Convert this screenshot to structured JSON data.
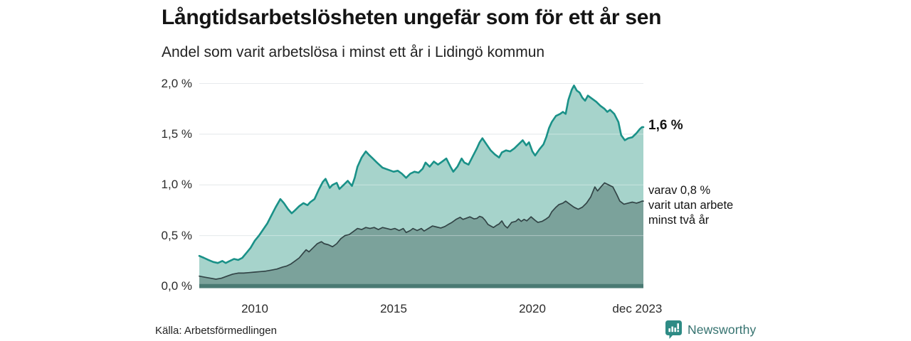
{
  "header": {
    "title": "Långtidsarbetslösheten ungefär som för ett år sen",
    "subtitle": "Andel som varit arbetslösa i minst ett år i Lidingö kommun"
  },
  "annotations": {
    "series1_end_label": "1,6 %",
    "series2_end_lines": [
      "varav 0,8 %",
      "varit utan arbete",
      "minst två år"
    ]
  },
  "footer": {
    "source": "Källa: Arbetsförmedlingen",
    "brand_name": "Newsworthy"
  },
  "colors": {
    "gridline": "#d8dde0",
    "gridline_overlay": "rgba(255,255,255,0.40)",
    "baseline_bar": "#4a7a73",
    "brand_teal": "#2e8b85",
    "text": "#1a1a1a"
  },
  "chart_data": {
    "type": "area",
    "title": "Långtidsarbetslösheten ungefär som för ett år sen",
    "subtitle": "Andel som varit arbetslösa i minst ett år i Lidingö kommun",
    "unit": "%",
    "x_axis": {
      "range": [
        2008,
        2024
      ],
      "ticks": [
        {
          "label": "2010",
          "x": 2010
        },
        {
          "label": "2015",
          "x": 2015
        },
        {
          "label": "2020",
          "x": 2020
        },
        {
          "label": "dec 2023",
          "x": 2023.78
        }
      ]
    },
    "y_axis": {
      "range": [
        0,
        2.0
      ],
      "ticks": [
        {
          "label": "0,0 %",
          "v": 0.0
        },
        {
          "label": "0,5 %",
          "v": 0.5
        },
        {
          "label": "1,0 %",
          "v": 1.0
        },
        {
          "label": "1,5 %",
          "v": 1.5
        },
        {
          "label": "2,0 %",
          "v": 2.0
        }
      ]
    },
    "legend_position": "right-annotations",
    "grid": true,
    "series": [
      {
        "name": "Andel arbetslösa minst ett år",
        "end_value_label": "1,6 %",
        "end_value": 1.6,
        "color": "#1a9188",
        "fill": "#a6d3cb",
        "stroke_width": 2.6,
        "points": [
          [
            2008.0,
            0.3
          ],
          [
            2008.17,
            0.28
          ],
          [
            2008.33,
            0.26
          ],
          [
            2008.5,
            0.24
          ],
          [
            2008.67,
            0.23
          ],
          [
            2008.83,
            0.25
          ],
          [
            2008.95,
            0.23
          ],
          [
            2009.1,
            0.25
          ],
          [
            2009.25,
            0.27
          ],
          [
            2009.4,
            0.26
          ],
          [
            2009.55,
            0.28
          ],
          [
            2009.7,
            0.33
          ],
          [
            2009.85,
            0.38
          ],
          [
            2010.0,
            0.45
          ],
          [
            2010.15,
            0.5
          ],
          [
            2010.3,
            0.56
          ],
          [
            2010.45,
            0.62
          ],
          [
            2010.6,
            0.7
          ],
          [
            2010.75,
            0.78
          ],
          [
            2010.92,
            0.86
          ],
          [
            2011.05,
            0.82
          ],
          [
            2011.2,
            0.76
          ],
          [
            2011.33,
            0.72
          ],
          [
            2011.45,
            0.75
          ],
          [
            2011.6,
            0.79
          ],
          [
            2011.75,
            0.82
          ],
          [
            2011.9,
            0.8
          ],
          [
            2012.0,
            0.83
          ],
          [
            2012.15,
            0.86
          ],
          [
            2012.3,
            0.95
          ],
          [
            2012.45,
            1.03
          ],
          [
            2012.55,
            1.06
          ],
          [
            2012.7,
            0.97
          ],
          [
            2012.8,
            1.0
          ],
          [
            2012.95,
            1.02
          ],
          [
            2013.05,
            0.96
          ],
          [
            2013.2,
            1.0
          ],
          [
            2013.35,
            1.04
          ],
          [
            2013.5,
            0.99
          ],
          [
            2013.6,
            1.07
          ],
          [
            2013.7,
            1.18
          ],
          [
            2013.85,
            1.27
          ],
          [
            2014.0,
            1.33
          ],
          [
            2014.1,
            1.3
          ],
          [
            2014.25,
            1.26
          ],
          [
            2014.4,
            1.22
          ],
          [
            2014.6,
            1.17
          ],
          [
            2014.8,
            1.15
          ],
          [
            2015.0,
            1.13
          ],
          [
            2015.15,
            1.14
          ],
          [
            2015.3,
            1.11
          ],
          [
            2015.45,
            1.07
          ],
          [
            2015.6,
            1.11
          ],
          [
            2015.75,
            1.13
          ],
          [
            2015.9,
            1.12
          ],
          [
            2016.05,
            1.16
          ],
          [
            2016.15,
            1.22
          ],
          [
            2016.3,
            1.18
          ],
          [
            2016.45,
            1.23
          ],
          [
            2016.6,
            1.2
          ],
          [
            2016.75,
            1.23
          ],
          [
            2016.9,
            1.26
          ],
          [
            2017.05,
            1.18
          ],
          [
            2017.15,
            1.13
          ],
          [
            2017.3,
            1.18
          ],
          [
            2017.45,
            1.26
          ],
          [
            2017.55,
            1.22
          ],
          [
            2017.7,
            1.2
          ],
          [
            2017.85,
            1.28
          ],
          [
            2018.0,
            1.36
          ],
          [
            2018.1,
            1.42
          ],
          [
            2018.2,
            1.46
          ],
          [
            2018.35,
            1.4
          ],
          [
            2018.5,
            1.34
          ],
          [
            2018.65,
            1.3
          ],
          [
            2018.8,
            1.27
          ],
          [
            2018.9,
            1.32
          ],
          [
            2019.05,
            1.34
          ],
          [
            2019.2,
            1.33
          ],
          [
            2019.35,
            1.36
          ],
          [
            2019.5,
            1.4
          ],
          [
            2019.65,
            1.44
          ],
          [
            2019.78,
            1.39
          ],
          [
            2019.88,
            1.42
          ],
          [
            2020.0,
            1.33
          ],
          [
            2020.1,
            1.29
          ],
          [
            2020.25,
            1.35
          ],
          [
            2020.4,
            1.4
          ],
          [
            2020.5,
            1.47
          ],
          [
            2020.6,
            1.56
          ],
          [
            2020.7,
            1.62
          ],
          [
            2020.85,
            1.68
          ],
          [
            2021.0,
            1.7
          ],
          [
            2021.1,
            1.72
          ],
          [
            2021.2,
            1.7
          ],
          [
            2021.3,
            1.84
          ],
          [
            2021.42,
            1.94
          ],
          [
            2021.5,
            1.98
          ],
          [
            2021.6,
            1.93
          ],
          [
            2021.7,
            1.91
          ],
          [
            2021.8,
            1.86
          ],
          [
            2021.9,
            1.83
          ],
          [
            2022.0,
            1.88
          ],
          [
            2022.15,
            1.85
          ],
          [
            2022.3,
            1.82
          ],
          [
            2022.45,
            1.78
          ],
          [
            2022.6,
            1.75
          ],
          [
            2022.7,
            1.72
          ],
          [
            2022.8,
            1.74
          ],
          [
            2022.95,
            1.7
          ],
          [
            2023.1,
            1.62
          ],
          [
            2023.2,
            1.49
          ],
          [
            2023.33,
            1.44
          ],
          [
            2023.45,
            1.46
          ],
          [
            2023.6,
            1.47
          ],
          [
            2023.75,
            1.51
          ],
          [
            2023.87,
            1.55
          ],
          [
            2023.95,
            1.57
          ],
          [
            2024.0,
            1.57
          ]
        ]
      },
      {
        "name": "varav utan arbete minst två år",
        "end_value_label": "varav 0,8 % varit utan arbete minst två år",
        "end_value": 0.8,
        "color": "#324446",
        "fill": "#7ba29b",
        "stroke_width": 1.7,
        "points": [
          [
            2008.0,
            0.1
          ],
          [
            2008.2,
            0.09
          ],
          [
            2008.4,
            0.08
          ],
          [
            2008.6,
            0.07
          ],
          [
            2008.8,
            0.08
          ],
          [
            2009.0,
            0.1
          ],
          [
            2009.2,
            0.12
          ],
          [
            2009.4,
            0.13
          ],
          [
            2009.6,
            0.13
          ],
          [
            2009.8,
            0.135
          ],
          [
            2010.0,
            0.14
          ],
          [
            2010.2,
            0.145
          ],
          [
            2010.4,
            0.15
          ],
          [
            2010.6,
            0.16
          ],
          [
            2010.8,
            0.17
          ],
          [
            2011.0,
            0.19
          ],
          [
            2011.15,
            0.2
          ],
          [
            2011.3,
            0.22
          ],
          [
            2011.45,
            0.25
          ],
          [
            2011.6,
            0.28
          ],
          [
            2011.75,
            0.33
          ],
          [
            2011.85,
            0.36
          ],
          [
            2011.95,
            0.34
          ],
          [
            2012.1,
            0.38
          ],
          [
            2012.25,
            0.42
          ],
          [
            2012.4,
            0.44
          ],
          [
            2012.5,
            0.42
          ],
          [
            2012.65,
            0.41
          ],
          [
            2012.8,
            0.39
          ],
          [
            2012.95,
            0.42
          ],
          [
            2013.1,
            0.47
          ],
          [
            2013.25,
            0.5
          ],
          [
            2013.4,
            0.51
          ],
          [
            2013.55,
            0.54
          ],
          [
            2013.7,
            0.57
          ],
          [
            2013.85,
            0.56
          ],
          [
            2014.0,
            0.58
          ],
          [
            2014.15,
            0.57
          ],
          [
            2014.3,
            0.58
          ],
          [
            2014.45,
            0.56
          ],
          [
            2014.6,
            0.58
          ],
          [
            2014.75,
            0.57
          ],
          [
            2014.9,
            0.56
          ],
          [
            2015.05,
            0.57
          ],
          [
            2015.2,
            0.55
          ],
          [
            2015.35,
            0.57
          ],
          [
            2015.45,
            0.53
          ],
          [
            2015.6,
            0.55
          ],
          [
            2015.7,
            0.57
          ],
          [
            2015.85,
            0.55
          ],
          [
            2016.0,
            0.57
          ],
          [
            2016.1,
            0.545
          ],
          [
            2016.25,
            0.57
          ],
          [
            2016.4,
            0.595
          ],
          [
            2016.55,
            0.585
          ],
          [
            2016.7,
            0.575
          ],
          [
            2016.85,
            0.59
          ],
          [
            2017.0,
            0.615
          ],
          [
            2017.1,
            0.63
          ],
          [
            2017.25,
            0.66
          ],
          [
            2017.4,
            0.68
          ],
          [
            2017.5,
            0.66
          ],
          [
            2017.6,
            0.67
          ],
          [
            2017.75,
            0.685
          ],
          [
            2017.9,
            0.665
          ],
          [
            2018.0,
            0.67
          ],
          [
            2018.1,
            0.69
          ],
          [
            2018.2,
            0.68
          ],
          [
            2018.3,
            0.65
          ],
          [
            2018.4,
            0.61
          ],
          [
            2018.5,
            0.595
          ],
          [
            2018.6,
            0.58
          ],
          [
            2018.7,
            0.6
          ],
          [
            2018.8,
            0.615
          ],
          [
            2018.9,
            0.645
          ],
          [
            2019.0,
            0.6
          ],
          [
            2019.1,
            0.575
          ],
          [
            2019.25,
            0.63
          ],
          [
            2019.4,
            0.64
          ],
          [
            2019.5,
            0.665
          ],
          [
            2019.6,
            0.64
          ],
          [
            2019.7,
            0.66
          ],
          [
            2019.8,
            0.645
          ],
          [
            2019.95,
            0.685
          ],
          [
            2020.1,
            0.65
          ],
          [
            2020.2,
            0.63
          ],
          [
            2020.35,
            0.64
          ],
          [
            2020.5,
            0.665
          ],
          [
            2020.6,
            0.685
          ],
          [
            2020.7,
            0.735
          ],
          [
            2020.85,
            0.78
          ],
          [
            2020.95,
            0.805
          ],
          [
            2021.1,
            0.82
          ],
          [
            2021.2,
            0.84
          ],
          [
            2021.35,
            0.81
          ],
          [
            2021.5,
            0.78
          ],
          [
            2021.65,
            0.76
          ],
          [
            2021.8,
            0.78
          ],
          [
            2021.95,
            0.82
          ],
          [
            2022.1,
            0.88
          ],
          [
            2022.25,
            0.98
          ],
          [
            2022.35,
            0.94
          ],
          [
            2022.5,
            0.99
          ],
          [
            2022.6,
            1.02
          ],
          [
            2022.75,
            1.0
          ],
          [
            2022.9,
            0.98
          ],
          [
            2023.05,
            0.9
          ],
          [
            2023.15,
            0.84
          ],
          [
            2023.3,
            0.81
          ],
          [
            2023.45,
            0.82
          ],
          [
            2023.6,
            0.83
          ],
          [
            2023.75,
            0.82
          ],
          [
            2023.87,
            0.83
          ],
          [
            2023.95,
            0.84
          ],
          [
            2024.0,
            0.84
          ]
        ]
      }
    ]
  }
}
